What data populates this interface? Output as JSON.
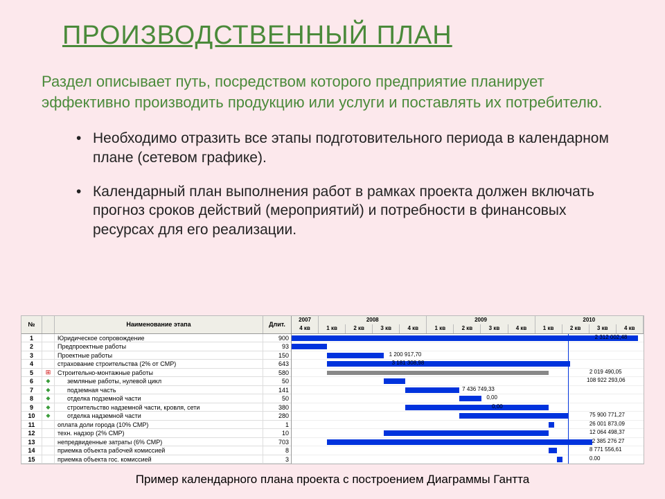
{
  "title": "ПРОИЗВОДСТВЕННЫЙ ПЛАН",
  "intro": "Раздел описывает путь, посредством которого предприятие планирует эффективно производить продукцию или услуги и поставлять их потребителю.",
  "bullets": [
    "Необходимо отразить все этапы подготовительного периода в календарном плане (сетевом графике).",
    "Календарный план выполнения работ в рамках проекта должен включать прогноз сроков действий (мероприятий) и потребности в финансовых ресурсах для его реализации."
  ],
  "caption": "Пример календарного плана проекта с построением Диаграммы Гантта",
  "gantt": {
    "left_headers": {
      "num": "№",
      "name": "Наименование этапа",
      "dur": "Длит."
    },
    "years": [
      {
        "label": "2007",
        "quarters": [
          "4 кв"
        ]
      },
      {
        "label": "2008",
        "quarters": [
          "1 кв",
          "2 кв",
          "3 кв",
          "4 кв"
        ]
      },
      {
        "label": "2009",
        "quarters": [
          "1 кв",
          "2 кв",
          "3 кв",
          "4 кв"
        ]
      },
      {
        "label": "2010",
        "quarters": [
          "1 кв",
          "2 кв",
          "3 кв",
          "4 кв"
        ]
      }
    ],
    "total_quarters": 13,
    "rows": [
      {
        "n": "1",
        "name": "Юридическое сопровождение",
        "dur": "900",
        "bar": {
          "start": 0.0,
          "len": 12.8
        },
        "label": "2 312 002,48",
        "label_at": 11.2
      },
      {
        "n": "2",
        "name": "Предпроектные работы",
        "dur": "93",
        "bar": {
          "start": 0.0,
          "len": 1.3
        }
      },
      {
        "n": "3",
        "name": "Проектные работы",
        "dur": "150",
        "bar": {
          "start": 1.3,
          "len": 2.1
        },
        "label": "1 200 917,70",
        "label_at": 3.6
      },
      {
        "n": "4",
        "name": "страхование строительства (2% от СМР)",
        "dur": "643",
        "bar": {
          "start": 1.3,
          "len": 9.0
        },
        "label": "3 181 308,98",
        "label_at": 3.7
      },
      {
        "n": "5",
        "name": "Строительно-монтажные работы",
        "dur": "580",
        "bar": {
          "start": 1.3,
          "len": 8.2,
          "gray": true
        },
        "label": "2 019 490,05",
        "label_at": 11.0,
        "icon": "marker"
      },
      {
        "n": "6",
        "name": "земляные работы, нулевой цикл",
        "dur": "50",
        "bar": {
          "start": 3.4,
          "len": 0.8
        },
        "label": "108 922 293,06",
        "label_at": 10.9,
        "indent": true,
        "icon": "dia"
      },
      {
        "n": "7",
        "name": "подземная часть",
        "dur": "141",
        "bar": {
          "start": 4.2,
          "len": 2.0
        },
        "label": "7 436 749,33",
        "label_at": 6.3,
        "indent": true,
        "icon": "dia"
      },
      {
        "n": "8",
        "name": "отделка подземной части",
        "dur": "50",
        "bar": {
          "start": 6.2,
          "len": 0.8
        },
        "label": "0,00",
        "label_at": 7.2,
        "indent": true,
        "icon": "dia"
      },
      {
        "n": "9",
        "name": "строительство надземной части, кровля, сети",
        "dur": "380",
        "bar": {
          "start": 4.2,
          "len": 5.3
        },
        "label": "0,00",
        "label_at": 7.4,
        "indent": true,
        "icon": "dia"
      },
      {
        "n": "10",
        "name": "отделка надземной части",
        "dur": "280",
        "bar": {
          "start": 6.2,
          "len": 4.0
        },
        "label": "75 900 771,27",
        "label_at": 11.0,
        "indent": true,
        "icon": "dia"
      },
      {
        "n": "11",
        "name": "оплата доли города (10% СМР)",
        "dur": "1",
        "bar": {
          "start": 9.5,
          "len": 0.2
        },
        "label": "26 001 873,09",
        "label_at": 11.0
      },
      {
        "n": "12",
        "name": "техн. надзор (2% СМР)",
        "dur": "10",
        "bar": {
          "start": 3.4,
          "len": 6.1
        },
        "label": "12 064 498,37",
        "label_at": 11.0
      },
      {
        "n": "13",
        "name": "непредвиденные затраты (6% СМР)",
        "dur": "703",
        "bar": {
          "start": 1.3,
          "len": 9.8
        },
        "label": "2 385 276 27",
        "label_at": 11.1
      },
      {
        "n": "14",
        "name": "приемка объекта рабочей комиссией",
        "dur": "8",
        "bar": {
          "start": 9.5,
          "len": 0.3
        },
        "label": "8 771 556,61",
        "label_at": 11.0
      },
      {
        "n": "15",
        "name": "приемка объекта гос. комиссией",
        "dur": "3",
        "bar": {
          "start": 9.8,
          "len": 0.2
        },
        "label": "0.00",
        "label_at": 11.0
      }
    ],
    "colors": {
      "bar": "#0033dd",
      "gray": "#888888",
      "grid": "#dddddd",
      "head_bg": "#efeee7"
    }
  }
}
